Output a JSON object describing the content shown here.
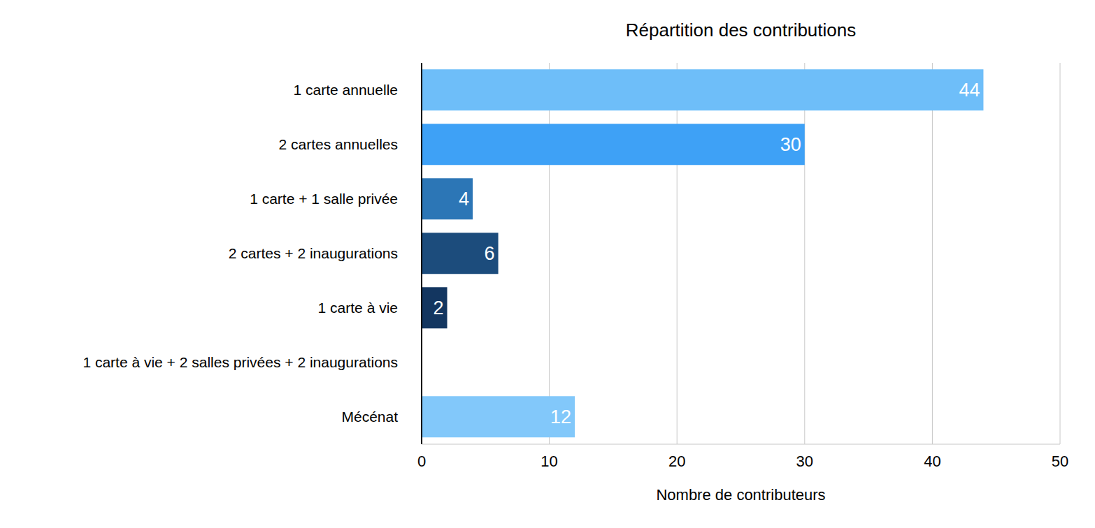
{
  "chart_data": {
    "type": "bar",
    "title": "Répartition des contributions",
    "orientation": "horizontal",
    "categories": [
      "1 carte annuelle",
      "2 cartes annuelles",
      "1 carte + 1 salle privée",
      "2 cartes + 2 inaugurations",
      "1 carte à vie",
      "1 carte à vie + 2 salles privées + 2 inaugurations",
      "Mécénat"
    ],
    "values": [
      44,
      30,
      4,
      6,
      2,
      null,
      12
    ],
    "colors": [
      "#6ebef9",
      "#3ea1f6",
      "#2c76b6",
      "#1c4c7c",
      "#133660",
      "#0d2848",
      "#82c8fa"
    ],
    "x_label": "Nombre de contributeurs",
    "xlim": [
      0,
      50
    ],
    "xticks": [
      0,
      10,
      20,
      30,
      40,
      50
    ],
    "grid": true,
    "data_labels": true
  }
}
